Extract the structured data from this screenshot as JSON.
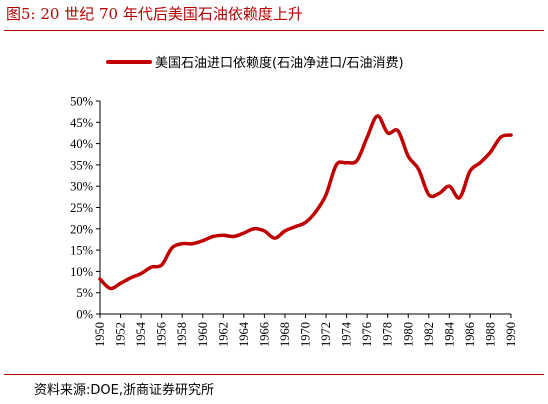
{
  "figure_title": "图5:   20 世纪 70 年代后美国石油依赖度上升",
  "source": "资料来源:DOE,浙商证券研究所",
  "colors": {
    "accent": "#b40000",
    "line": "#c00000",
    "axis": "#000000"
  },
  "chart_data": {
    "type": "line",
    "title": "",
    "xlabel": "",
    "ylabel": "",
    "legend_position": "top-center",
    "grid": false,
    "xlim": [
      1950,
      1990
    ],
    "ylim": [
      0,
      50
    ],
    "x_ticks": [
      "1950",
      "1952",
      "1954",
      "1956",
      "1958",
      "1960",
      "1962",
      "1964",
      "1966",
      "1968",
      "1970",
      "1972",
      "1974",
      "1976",
      "1978",
      "1980",
      "1982",
      "1984",
      "1986",
      "1988",
      "1990"
    ],
    "y_ticks": [
      "0%",
      "5%",
      "10%",
      "15%",
      "20%",
      "25%",
      "30%",
      "35%",
      "40%",
      "45%",
      "50%"
    ],
    "series": [
      {
        "name": "美国石油进口依赖度(石油净进口/石油消费)",
        "color": "#c00000",
        "x": [
          1950,
          1951,
          1952,
          1953,
          1954,
          1955,
          1956,
          1957,
          1958,
          1959,
          1960,
          1961,
          1962,
          1963,
          1964,
          1965,
          1966,
          1967,
          1968,
          1969,
          1970,
          1971,
          1972,
          1973,
          1974,
          1975,
          1976,
          1977,
          1978,
          1979,
          1980,
          1981,
          1982,
          1983,
          1984,
          1985,
          1986,
          1987,
          1988,
          1989,
          1990
        ],
        "values": [
          8.2,
          6.0,
          7.2,
          8.5,
          9.5,
          11.0,
          11.5,
          15.5,
          16.5,
          16.5,
          17.2,
          18.2,
          18.5,
          18.2,
          19.0,
          20.0,
          19.5,
          17.8,
          19.5,
          20.5,
          21.5,
          24.0,
          28.0,
          35.0,
          35.5,
          36.0,
          41.5,
          46.5,
          42.5,
          43.0,
          37.0,
          34.0,
          28.0,
          28.3,
          30.0,
          27.3,
          33.5,
          35.5,
          38.0,
          41.5,
          42.0
        ]
      }
    ]
  }
}
